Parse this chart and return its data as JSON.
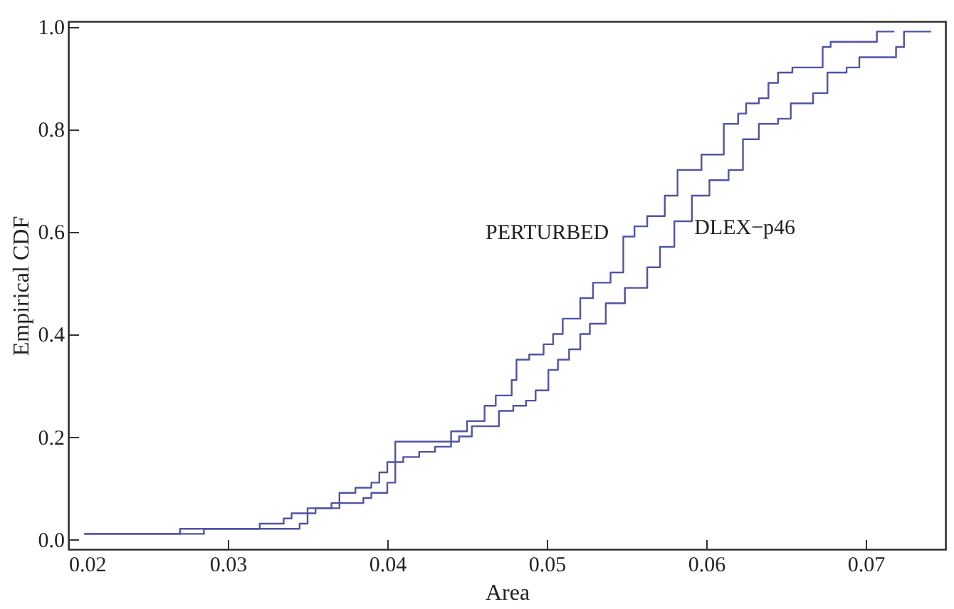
{
  "chart_data": {
    "type": "step",
    "xlabel": "Area",
    "ylabel": "Empirical CDF",
    "xlim": [
      0.02,
      0.075
    ],
    "ylim": [
      -0.02,
      1.01
    ],
    "xticks": [
      0.02,
      0.03,
      0.04,
      0.05,
      0.06,
      0.07
    ],
    "yticks": [
      {
        "value": 0,
        "label": "0.0"
      },
      0.2,
      0.4,
      0.6,
      0.8,
      {
        "value": 1,
        "label": "1.0"
      }
    ],
    "grid": false,
    "line_style": "solid",
    "series": [
      {
        "name": "PERTURBED",
        "color": "#5252a6",
        "x": [
          0.021,
          0.027,
          0.032,
          0.0335,
          0.034,
          0.035,
          0.0365,
          0.037,
          0.038,
          0.039,
          0.0395,
          0.04,
          0.0405,
          0.044,
          0.045,
          0.0461,
          0.0468,
          0.0478,
          0.0481,
          0.0489,
          0.0498,
          0.0504,
          0.051,
          0.0521,
          0.0529,
          0.054,
          0.0548,
          0.0555,
          0.0563,
          0.0574,
          0.0582,
          0.0597,
          0.0605,
          0.0611,
          0.062,
          0.0625,
          0.0633,
          0.0639,
          0.0645,
          0.0654,
          0.0673,
          0.0678,
          0.0704,
          0.0707,
          0.0718
        ],
        "values": [
          0.01,
          0.02,
          0.03,
          0.04,
          0.05,
          0.06,
          0.07,
          0.09,
          0.1,
          0.11,
          0.13,
          0.15,
          0.19,
          0.21,
          0.23,
          0.26,
          0.28,
          0.31,
          0.35,
          0.36,
          0.38,
          0.4,
          0.43,
          0.47,
          0.5,
          0.52,
          0.59,
          0.61,
          0.63,
          0.67,
          0.72,
          0.75,
          0.75,
          0.81,
          0.83,
          0.85,
          0.86,
          0.89,
          0.91,
          0.92,
          0.96,
          0.97,
          0.97,
          0.99,
          0.99
        ]
      },
      {
        "name": "DLEX−p46",
        "color": "#5252a6",
        "x": [
          0.021,
          0.0285,
          0.0345,
          0.035,
          0.0355,
          0.037,
          0.0385,
          0.039,
          0.04,
          0.0405,
          0.041,
          0.042,
          0.043,
          0.044,
          0.0445,
          0.0453,
          0.047,
          0.0479,
          0.0487,
          0.0493,
          0.0501,
          0.0507,
          0.0514,
          0.0521,
          0.0527,
          0.0537,
          0.0549,
          0.0563,
          0.0571,
          0.058,
          0.0591,
          0.0602,
          0.0614,
          0.0623,
          0.0633,
          0.0645,
          0.0653,
          0.0667,
          0.0676,
          0.0688,
          0.0696,
          0.0719,
          0.0724,
          0.0741
        ],
        "values": [
          0.01,
          0.02,
          0.03,
          0.05,
          0.06,
          0.07,
          0.08,
          0.09,
          0.11,
          0.15,
          0.16,
          0.17,
          0.18,
          0.19,
          0.2,
          0.22,
          0.25,
          0.26,
          0.27,
          0.29,
          0.33,
          0.35,
          0.37,
          0.4,
          0.42,
          0.46,
          0.49,
          0.53,
          0.57,
          0.62,
          0.67,
          0.7,
          0.72,
          0.78,
          0.81,
          0.82,
          0.85,
          0.87,
          0.91,
          0.92,
          0.94,
          0.96,
          0.99,
          0.99
        ]
      }
    ]
  }
}
